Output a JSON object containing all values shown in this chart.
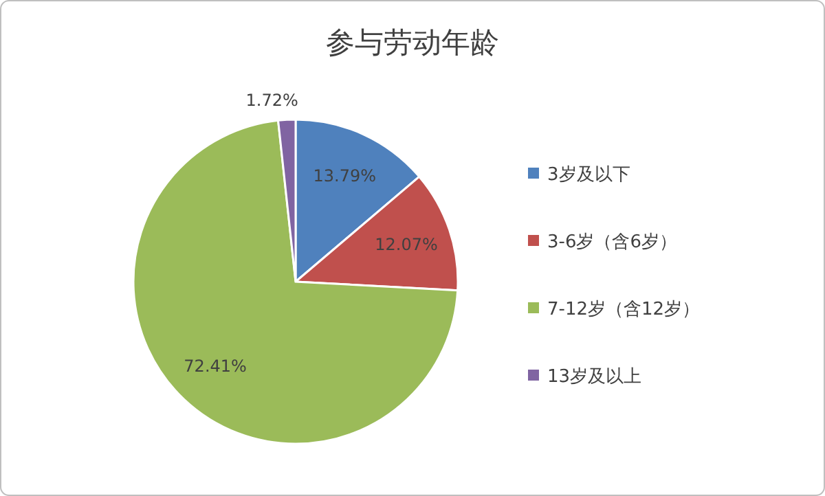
{
  "chart_data": {
    "type": "pie",
    "title": "参与劳动年龄",
    "categories": [
      "3岁及以下",
      "3-6岁（含6岁）",
      "7-12岁（含12岁）",
      "13岁及以上"
    ],
    "values": [
      13.79,
      12.07,
      72.41,
      1.72
    ],
    "colors": [
      "#4f81bd",
      "#c0504d",
      "#9bbb59",
      "#8064a2"
    ],
    "value_labels": [
      "13.79%",
      "12.07%",
      "72.41%",
      "1.72%"
    ],
    "legend": "right"
  }
}
